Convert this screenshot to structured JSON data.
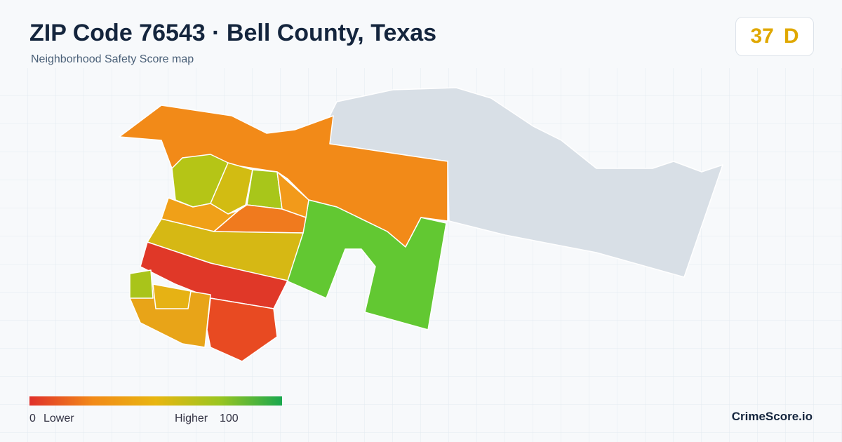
{
  "header": {
    "title": "ZIP Code 76543 · Bell County, Texas",
    "subtitle": "Neighborhood Safety Score map"
  },
  "score": {
    "value": "37",
    "grade": "D"
  },
  "legend": {
    "min": "0",
    "min_label": "Lower",
    "max_label": "Higher",
    "max": "100"
  },
  "brand": "CrimeScore.io"
}
